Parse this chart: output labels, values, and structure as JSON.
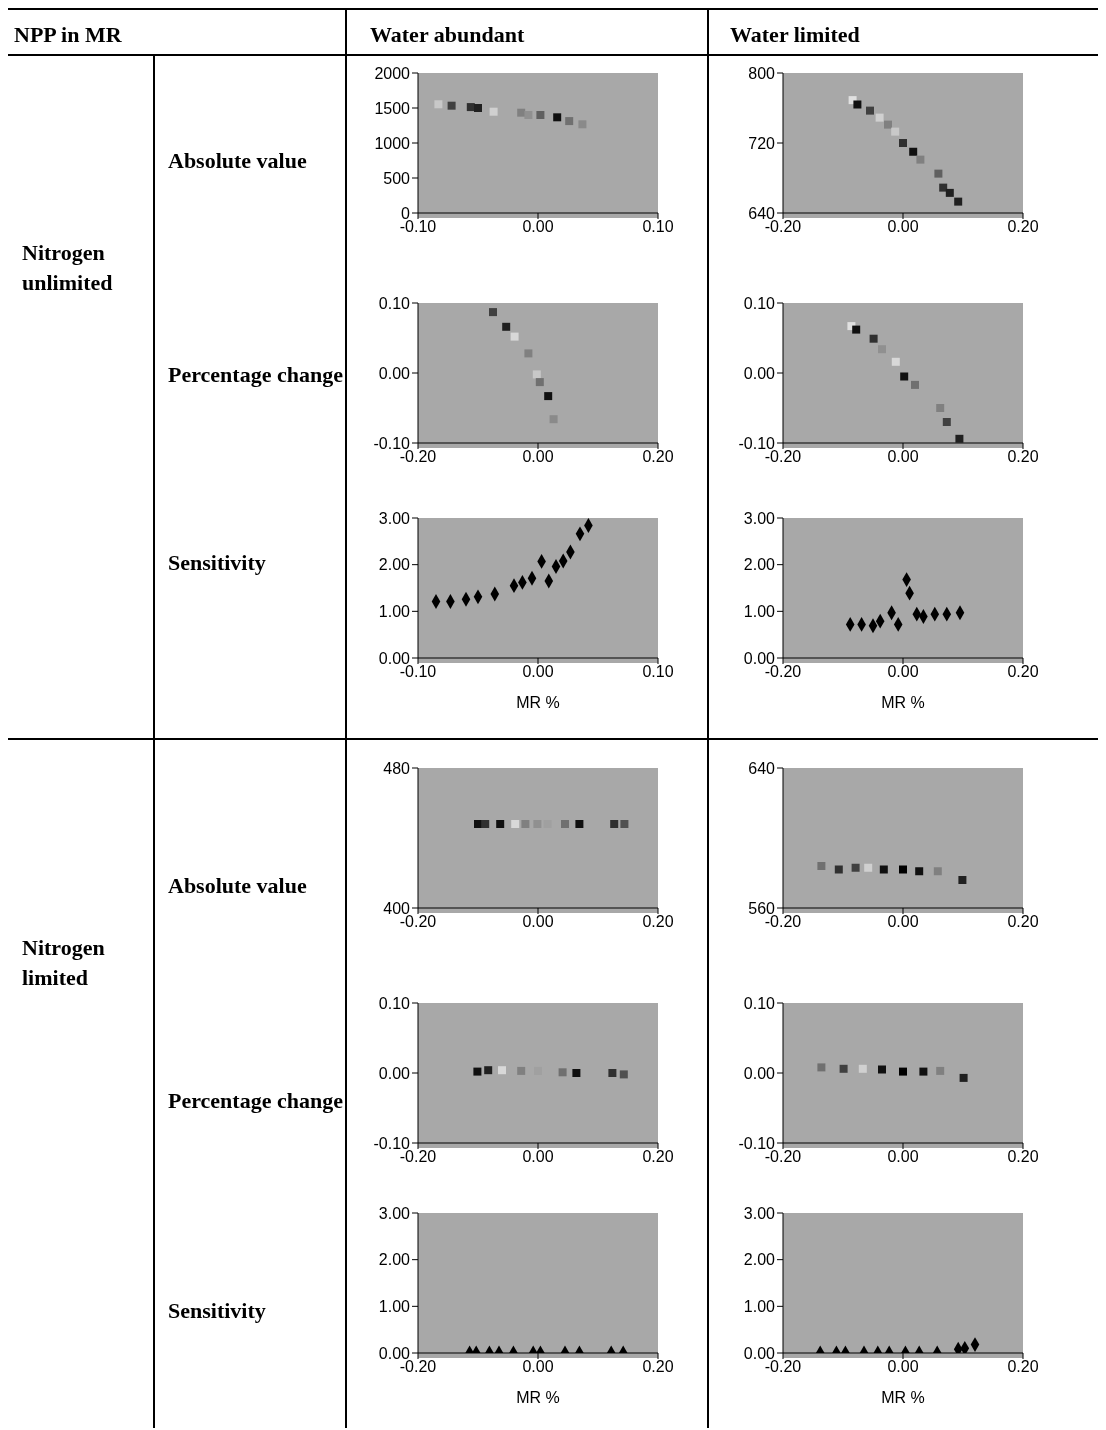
{
  "chart_data": [
    {
      "type": "other",
      "annotations": [
        "NPP  in MR",
        "Water abundant",
        "Water limited",
        "Nitrogen unlimited",
        "Nitrogen limited",
        "Absolute value",
        "Percentage change",
        "Sensitivity",
        "Absolute value",
        "Percentage change",
        "Sensitivity"
      ]
    },
    {
      "type": "scatter",
      "marker": "square",
      "xlim": [
        -0.1,
        0.1
      ],
      "xticks": [
        {
          "value": -0.1,
          "label": "-0.10"
        },
        {
          "value": 0,
          "label": "0.00"
        },
        {
          "value": 0.1,
          "label": "0.10"
        }
      ],
      "ylim": [
        0,
        2000
      ],
      "yticks": [
        0,
        500,
        1000,
        1500,
        2000
      ],
      "x": [
        -0.083,
        -0.072,
        -0.056,
        -0.05,
        -0.037,
        -0.014,
        -0.008,
        0.002,
        0.016,
        0.026,
        0.037
      ],
      "values": [
        1553,
        1533,
        1513,
        1500,
        1447,
        1433,
        1400,
        1400,
        1367,
        1313,
        1267
      ],
      "colors": [
        "#c8c8c8",
        "#404040",
        "#303030",
        "#202020",
        "#d0d0d0",
        "#808080",
        "#909090",
        "#606060",
        "#101010",
        "#707070",
        "#8a8a8a"
      ]
    },
    {
      "type": "scatter",
      "marker": "square",
      "xlim": [
        -0.2,
        0.2
      ],
      "xticks": [
        {
          "value": -0.2,
          "label": "-0.20"
        },
        {
          "value": 0,
          "label": "0.00"
        },
        {
          "value": 0.2,
          "label": "0.20"
        }
      ],
      "ylim": [
        640,
        800
      ],
      "yticks": [
        640,
        720,
        800
      ],
      "x": [
        -0.084,
        -0.076,
        -0.055,
        -0.039,
        -0.025,
        -0.013,
        0,
        0.017,
        0.029,
        0.059,
        0.067,
        0.078,
        0.092
      ],
      "values": [
        769,
        764,
        757,
        749,
        741,
        733,
        720,
        710,
        701,
        685,
        669,
        663,
        653
      ],
      "colors": [
        "#e0e0e0",
        "#101010",
        "#404040",
        "#d0d0d0",
        "#808080",
        "#c8c8c8",
        "#303030",
        "#101010",
        "#808080",
        "#606060",
        "#303030",
        "#202020",
        "#202020"
      ]
    },
    {
      "type": "scatter",
      "marker": "square",
      "xlim": [
        -0.2,
        0.2
      ],
      "xticks": [
        {
          "value": -0.2,
          "label": "-0.20"
        },
        {
          "value": 0,
          "label": "0.00"
        },
        {
          "value": 0.2,
          "label": "0.20"
        }
      ],
      "ylim": [
        -0.1,
        0.1
      ],
      "yticks": [
        {
          "value": -0.1,
          "label": "-0.10"
        },
        {
          "value": 0,
          "label": "0.00"
        },
        {
          "value": 0.1,
          "label": "0.10"
        }
      ],
      "x": [
        -0.075,
        -0.053,
        -0.039,
        -0.016,
        -0.002,
        0.003,
        0.017,
        0.026
      ],
      "values": [
        0.087,
        0.066,
        0.052,
        0.028,
        -0.002,
        -0.013,
        -0.033,
        -0.066
      ],
      "colors": [
        "#404040",
        "#202020",
        "#d8d8d8",
        "#808080",
        "#c8c8c8",
        "#707070",
        "#101010",
        "#8a8a8a"
      ]
    },
    {
      "type": "scatter",
      "marker": "square",
      "xlim": [
        -0.2,
        0.2
      ],
      "xticks": [
        {
          "value": -0.2,
          "label": "-0.20"
        },
        {
          "value": 0,
          "label": "0.00"
        },
        {
          "value": 0.2,
          "label": "0.20"
        }
      ],
      "ylim": [
        -0.1,
        0.1
      ],
      "yticks": [
        {
          "value": -0.1,
          "label": "-0.10"
        },
        {
          "value": 0,
          "label": "0.00"
        },
        {
          "value": 0.1,
          "label": "0.10"
        }
      ],
      "x": [
        -0.086,
        -0.078,
        -0.049,
        -0.035,
        -0.012,
        0.002,
        0.02,
        0.062,
        0.073,
        0.094
      ],
      "values": [
        0.067,
        0.062,
        0.049,
        0.034,
        0.016,
        -0.005,
        -0.017,
        -0.05,
        -0.07,
        -0.094
      ],
      "colors": [
        "#e0e0e0",
        "#101010",
        "#303030",
        "#909090",
        "#d8d8d8",
        "#101010",
        "#707070",
        "#808080",
        "#404040",
        "#202020"
      ]
    },
    {
      "type": "scatter",
      "marker": "diamond",
      "xlabel": "MR %",
      "xlim": [
        -0.1,
        0.1
      ],
      "xticks": [
        {
          "value": -0.1,
          "label": "-0.10"
        },
        {
          "value": 0,
          "label": "0.00"
        },
        {
          "value": 0.1,
          "label": "0.10"
        }
      ],
      "ylim": [
        0,
        3
      ],
      "yticks": [
        {
          "value": 0,
          "label": "0.00"
        },
        {
          "value": 1,
          "label": "1.00"
        },
        {
          "value": 2,
          "label": "2.00"
        },
        {
          "value": 3,
          "label": "3.00"
        }
      ],
      "x": [
        -0.085,
        -0.073,
        -0.06,
        -0.05,
        -0.036,
        -0.02,
        -0.013,
        -0.005,
        0.003,
        0.009,
        0.015,
        0.021,
        0.027,
        0.035,
        0.042
      ],
      "values": [
        1.21,
        1.21,
        1.26,
        1.31,
        1.37,
        1.55,
        1.62,
        1.71,
        2.07,
        1.65,
        1.96,
        2.08,
        2.27,
        2.66,
        2.84
      ],
      "color": "#000000"
    },
    {
      "type": "scatter",
      "marker": "diamond",
      "xlabel": "MR %",
      "xlim": [
        -0.2,
        0.2
      ],
      "xticks": [
        {
          "value": -0.2,
          "label": "-0.20"
        },
        {
          "value": 0,
          "label": "0.00"
        },
        {
          "value": 0.2,
          "label": "0.20"
        }
      ],
      "ylim": [
        0,
        3
      ],
      "yticks": [
        {
          "value": 0,
          "label": "0.00"
        },
        {
          "value": 1,
          "label": "1.00"
        },
        {
          "value": 2,
          "label": "2.00"
        },
        {
          "value": 3,
          "label": "3.00"
        }
      ],
      "x": [
        -0.088,
        -0.069,
        -0.05,
        -0.038,
        -0.019,
        -0.008,
        0.006,
        0.011,
        0.023,
        0.034,
        0.053,
        0.073,
        0.095
      ],
      "values": [
        0.72,
        0.72,
        0.69,
        0.79,
        0.97,
        0.72,
        1.68,
        1.39,
        0.94,
        0.89,
        0.94,
        0.94,
        0.97
      ],
      "color": "#000000"
    },
    {
      "type": "scatter",
      "marker": "square",
      "xlim": [
        -0.2,
        0.2
      ],
      "xticks": [
        {
          "value": -0.2,
          "label": "-0.20"
        },
        {
          "value": 0,
          "label": "0.00"
        },
        {
          "value": 0.2,
          "label": "0.20"
        }
      ],
      "ylim": [
        400,
        480
      ],
      "yticks": [
        400,
        480
      ],
      "x": [
        -0.1,
        -0.088,
        -0.063,
        -0.038,
        -0.021,
        -0.001,
        0.016,
        0.045,
        0.069,
        0.127,
        0.144
      ],
      "values": [
        448,
        448,
        448,
        448,
        448,
        448,
        448,
        448,
        448,
        448,
        448
      ],
      "colors": [
        "#101010",
        "#303030",
        "#101010",
        "#d8d8d8",
        "#808080",
        "#909090",
        "#a0a0a0",
        "#707070",
        "#101010",
        "#303030",
        "#505050"
      ]
    },
    {
      "type": "scatter",
      "marker": "square",
      "xlim": [
        -0.2,
        0.2
      ],
      "xticks": [
        {
          "value": -0.2,
          "label": "-0.20"
        },
        {
          "value": 0,
          "label": "0.00"
        },
        {
          "value": 0.2,
          "label": "0.20"
        }
      ],
      "ylim": [
        560,
        640
      ],
      "yticks": [
        560,
        640
      ],
      "x": [
        -0.136,
        -0.107,
        -0.079,
        -0.058,
        -0.032,
        0,
        0.027,
        0.058,
        0.099
      ],
      "values": [
        584,
        582,
        583,
        583,
        582,
        582,
        581,
        581,
        576
      ],
      "colors": [
        "#707070",
        "#303030",
        "#404040",
        "#d0d0d0",
        "#101010",
        "#000000",
        "#101010",
        "#808080",
        "#202020"
      ]
    },
    {
      "type": "scatter",
      "marker": "square",
      "xlim": [
        -0.2,
        0.2
      ],
      "xticks": [
        {
          "value": -0.2,
          "label": "-0.20"
        },
        {
          "value": 0,
          "label": "0.00"
        },
        {
          "value": 0.2,
          "label": "0.20"
        }
      ],
      "ylim": [
        -0.1,
        0.1
      ],
      "yticks": [
        {
          "value": -0.1,
          "label": "-0.10"
        },
        {
          "value": 0,
          "label": "0.00"
        },
        {
          "value": 0.1,
          "label": "0.10"
        }
      ],
      "x": [
        -0.101,
        -0.083,
        -0.06,
        -0.028,
        0,
        0.041,
        0.064,
        0.124,
        0.143
      ],
      "values": [
        0.002,
        0.004,
        0.004,
        0.003,
        0.003,
        0.001,
        0,
        0,
        -0.002
      ],
      "colors": [
        "#101010",
        "#202020",
        "#d8d8d8",
        "#808080",
        "#a0a0a0",
        "#707070",
        "#101010",
        "#303030",
        "#505050"
      ]
    },
    {
      "type": "scatter",
      "marker": "square",
      "xlim": [
        -0.2,
        0.2
      ],
      "xticks": [
        {
          "value": -0.2,
          "label": "-0.20"
        },
        {
          "value": 0,
          "label": "0.00"
        },
        {
          "value": 0.2,
          "label": "0.20"
        }
      ],
      "ylim": [
        -0.1,
        0.1
      ],
      "yticks": [
        {
          "value": -0.1,
          "label": "-0.10"
        },
        {
          "value": 0,
          "label": "0.00"
        },
        {
          "value": 0.1,
          "label": "0.10"
        }
      ],
      "x": [
        -0.136,
        -0.099,
        -0.067,
        -0.035,
        0,
        0.034,
        0.062,
        0.101
      ],
      "values": [
        0.008,
        0.006,
        0.006,
        0.005,
        0.002,
        0.002,
        0.003,
        -0.007
      ],
      "colors": [
        "#707070",
        "#404040",
        "#d0d0d0",
        "#101010",
        "#000000",
        "#101010",
        "#808080",
        "#202020"
      ]
    },
    {
      "type": "scatter",
      "marker": "diamond",
      "xlabel": "MR %",
      "xlim": [
        -0.2,
        0.2
      ],
      "xticks": [
        {
          "value": -0.2,
          "label": "-0.20"
        },
        {
          "value": 0,
          "label": "0.00"
        },
        {
          "value": 0.2,
          "label": "0.20"
        }
      ],
      "ylim": [
        0,
        3
      ],
      "yticks": [
        {
          "value": 0,
          "label": "0.00"
        },
        {
          "value": 1,
          "label": "1.00"
        },
        {
          "value": 2,
          "label": "2.00"
        },
        {
          "value": 3,
          "label": "3.00"
        }
      ],
      "x": [
        -0.114,
        -0.103,
        -0.081,
        -0.065,
        -0.041,
        -0.008,
        0.004,
        0.045,
        0.069,
        0.122,
        0.142
      ],
      "values": [
        0,
        0,
        0,
        0,
        0,
        0,
        0,
        0,
        0,
        0,
        0
      ],
      "color": "#000000"
    },
    {
      "type": "scatter",
      "marker": "diamond",
      "xlabel": "MR %",
      "xlim": [
        -0.2,
        0.2
      ],
      "xticks": [
        {
          "value": -0.2,
          "label": "-0.20"
        },
        {
          "value": 0,
          "label": "0.00"
        },
        {
          "value": 0.2,
          "label": "0.20"
        }
      ],
      "ylim": [
        0,
        3
      ],
      "yticks": [
        {
          "value": 0,
          "label": "0.00"
        },
        {
          "value": 1,
          "label": "1.00"
        },
        {
          "value": 2,
          "label": "2.00"
        },
        {
          "value": 3,
          "label": "3.00"
        }
      ],
      "x": [
        -0.138,
        -0.111,
        -0.096,
        -0.065,
        -0.042,
        -0.023,
        0.004,
        0.027,
        0.057,
        0.092,
        0.103,
        0.12
      ],
      "values": [
        0,
        0,
        0,
        0,
        0,
        0,
        0,
        0,
        0,
        0.08,
        0.1,
        0.18
      ],
      "color": "#000000"
    }
  ]
}
